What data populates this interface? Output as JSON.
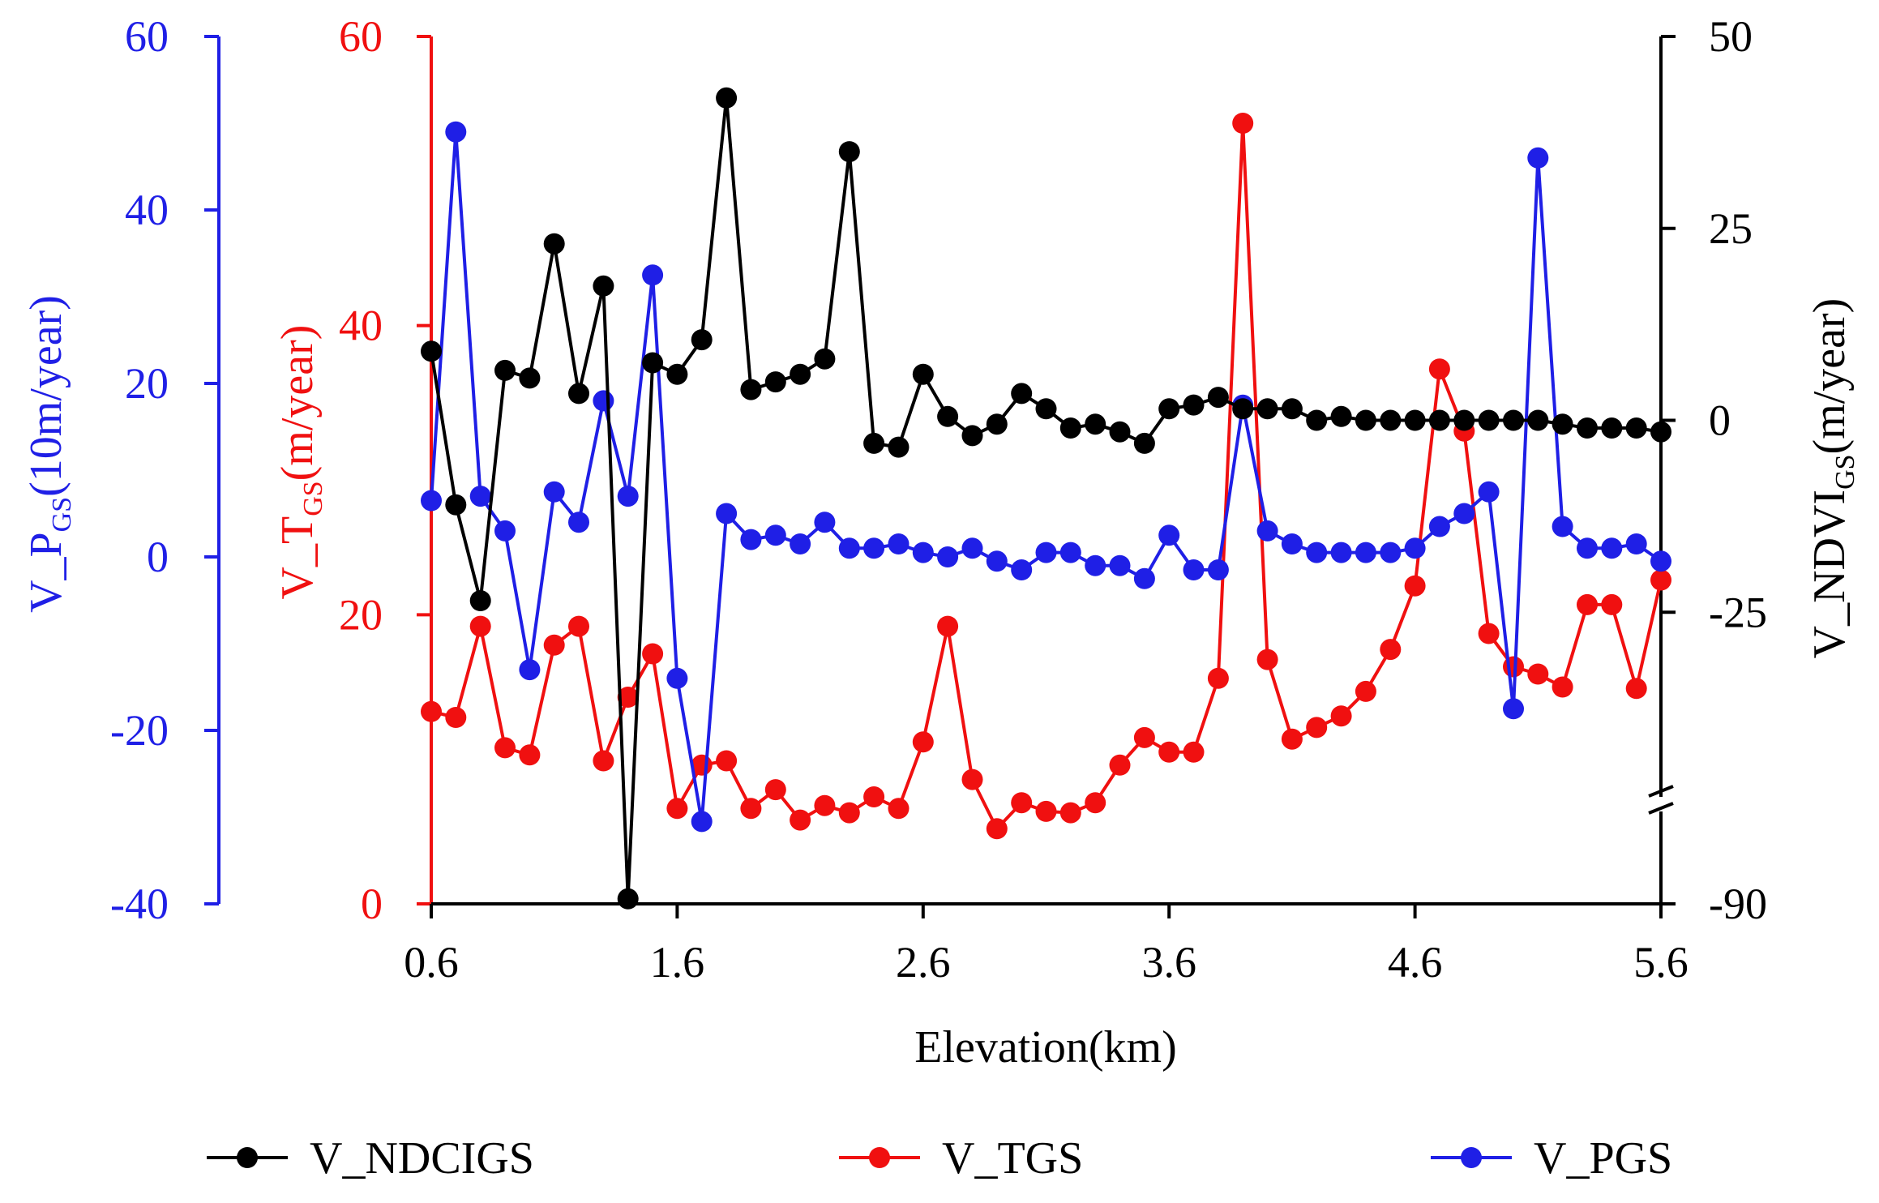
{
  "chart_data": {
    "type": "line",
    "xlabel": "Elevation(km)",
    "xlim": [
      0.6,
      5.6
    ],
    "xticks": [
      "0.6",
      "1.6",
      "2.6",
      "3.6",
      "4.6",
      "5.6"
    ],
    "axes": {
      "blue": {
        "label_main": "V_P",
        "label_sub": "GS",
        "label_tail": "(10m/year)",
        "ylim": [
          -40,
          60
        ],
        "ticks": [
          "-40",
          "-20",
          "0",
          "20",
          "40",
          "60"
        ],
        "color": "#1f1fe6"
      },
      "red": {
        "label_main": "V_T",
        "label_sub": "GS",
        "label_tail": "(m/year)",
        "ylim": [
          0,
          60
        ],
        "ticks": [
          "0",
          "20",
          "40",
          "60"
        ],
        "color": "#f01010"
      },
      "black": {
        "label_main": "V_NDVI",
        "label_sub": "GS",
        "label_tail": "(m/year)",
        "ylim_lower": [
          -90,
          -50
        ],
        "ylim_upper": [
          -50,
          50
        ],
        "ticks": [
          "-90",
          "-25",
          "0",
          "25",
          "50"
        ],
        "color": "#000000"
      }
    },
    "legend": [
      "V_NDCIGS",
      "V_TGS",
      "V_PGS"
    ],
    "legend_position": "bottom",
    "series": [
      {
        "name": "V_NDCIGS",
        "axis": "black",
        "color": "#000000",
        "x": [
          0.6,
          0.7,
          0.8,
          0.9,
          1.0,
          1.1,
          1.2,
          1.3,
          1.4,
          1.5,
          1.6,
          1.7,
          1.8,
          1.9,
          2.0,
          2.1,
          2.2,
          2.3,
          2.4,
          2.5,
          2.6,
          2.7,
          2.8,
          2.9,
          3.0,
          3.1,
          3.2,
          3.3,
          3.4,
          3.5,
          3.6,
          3.7,
          3.8,
          3.9,
          4.0,
          4.1,
          4.2,
          4.3,
          4.4,
          4.5,
          4.6,
          4.7,
          4.8,
          4.9,
          5.0,
          5.1,
          5.2,
          5.3,
          5.4,
          5.5,
          5.6
        ],
        "values": [
          9,
          -11,
          -23.5,
          6.5,
          5.5,
          23,
          3.5,
          17.5,
          -88,
          7.5,
          6,
          10.5,
          42,
          4,
          5,
          6,
          8,
          35,
          -3,
          -3.5,
          6,
          0.5,
          -2,
          -0.5,
          3.5,
          1.5,
          -1,
          -0.5,
          -1.5,
          -3,
          1.5,
          2,
          3,
          1.5,
          1.5,
          1.5,
          0,
          0.5,
          0,
          0,
          0,
          0,
          0,
          0,
          0,
          0,
          -0.5,
          -1,
          -1,
          -1,
          -1.5
        ]
      },
      {
        "name": "V_TGS",
        "axis": "red",
        "color": "#f01010",
        "x": [
          0.6,
          0.7,
          0.8,
          0.9,
          1.0,
          1.1,
          1.2,
          1.3,
          1.4,
          1.5,
          1.6,
          1.7,
          1.8,
          1.9,
          2.0,
          2.1,
          2.2,
          2.3,
          2.4,
          2.5,
          2.6,
          2.7,
          2.8,
          2.9,
          3.0,
          3.1,
          3.2,
          3.3,
          3.4,
          3.5,
          3.6,
          3.7,
          3.8,
          3.9,
          4.0,
          4.1,
          4.2,
          4.3,
          4.4,
          4.5,
          4.6,
          4.7,
          4.8,
          4.9,
          5.0,
          5.1,
          5.2,
          5.3,
          5.4,
          5.5,
          5.6
        ],
        "values": [
          13.3,
          12.9,
          19.2,
          10.8,
          10.3,
          17.9,
          19.2,
          9.9,
          14.3,
          17.3,
          6.6,
          9.6,
          9.9,
          6.6,
          7.9,
          5.8,
          6.8,
          6.3,
          7.4,
          6.6,
          11.2,
          19.2,
          8.6,
          5.2,
          7.0,
          6.4,
          6.3,
          7.0,
          9.6,
          11.5,
          10.5,
          10.5,
          15.6,
          54.0,
          16.9,
          11.4,
          12.2,
          13.0,
          14.7,
          17.6,
          22.0,
          37.0,
          32.7,
          18.7,
          16.4,
          15.9,
          15.0,
          20.7,
          20.7,
          14.9,
          22.4
        ]
      },
      {
        "name": "V_PGS",
        "axis": "blue",
        "color": "#1f1fe6",
        "x": [
          0.6,
          0.7,
          0.8,
          0.9,
          1.0,
          1.1,
          1.2,
          1.3,
          1.4,
          1.5,
          1.6,
          1.7,
          1.8,
          1.9,
          2.0,
          2.1,
          2.2,
          2.3,
          2.4,
          2.5,
          2.6,
          2.7,
          2.8,
          2.9,
          3.0,
          3.1,
          3.2,
          3.3,
          3.4,
          3.5,
          3.6,
          3.7,
          3.8,
          3.9,
          4.0,
          4.1,
          4.2,
          4.3,
          4.4,
          4.5,
          4.6,
          4.7,
          4.8,
          4.9,
          5.0,
          5.1,
          5.2,
          5.3,
          5.4,
          5.5,
          5.6
        ],
        "values": [
          6.5,
          49,
          7,
          3,
          -13,
          7.5,
          4,
          18,
          7,
          32.5,
          -14,
          -30.5,
          5,
          2,
          2.5,
          1.5,
          4,
          1,
          1,
          1.5,
          0.5,
          0,
          1,
          -0.5,
          -1.5,
          0.5,
          0.5,
          -1,
          -1,
          -2.5,
          2.5,
          -1.5,
          -1.5,
          17.5,
          3,
          1.5,
          0.5,
          0.5,
          0.5,
          0.5,
          1,
          3.5,
          5,
          7.5,
          -17.5,
          46,
          3.5,
          1,
          1,
          1.5,
          -0.5
        ]
      }
    ]
  }
}
